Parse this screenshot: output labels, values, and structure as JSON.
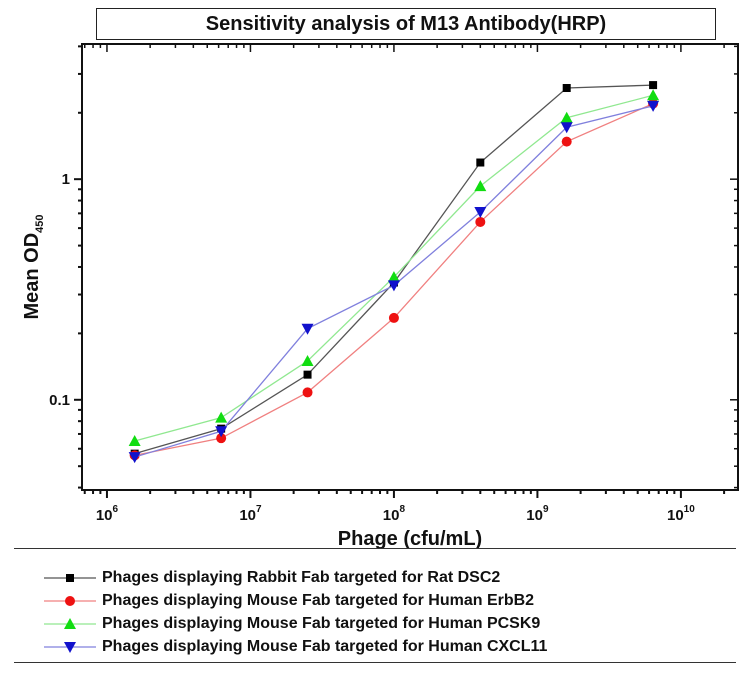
{
  "chart_data": {
    "type": "line",
    "title": "Sensitivity analysis of M13 Antibody(HRP)",
    "xlabel": "Phage (cfu/mL)",
    "ylabel": "Mean OD",
    "ylabel_sub": "450",
    "x_scale": "log",
    "y_scale": "log",
    "xlim": [
      670000,
      25000000000
    ],
    "ylim": [
      0.039,
      4.1
    ],
    "x_ticks": [
      {
        "value": 1000000.0,
        "base": "10",
        "exp": "6"
      },
      {
        "value": 10000000.0,
        "base": "10",
        "exp": "7"
      },
      {
        "value": 100000000.0,
        "base": "10",
        "exp": "8"
      },
      {
        "value": 1000000000.0,
        "base": "10",
        "exp": "9"
      },
      {
        "value": 10000000000.0,
        "base": "10",
        "exp": "10"
      }
    ],
    "y_ticks": [
      {
        "value": 0.1,
        "label": "0.1"
      },
      {
        "value": 1,
        "label": "1"
      }
    ],
    "grid": false,
    "legend_placement": "bottom",
    "x": [
      1560000,
      6250000,
      25000000,
      100000000,
      400000000,
      1600000000,
      6400000000
    ],
    "series": [
      {
        "name": "Phages displaying Rabbit Fab targeted for Rat DSC2",
        "color": "#000000",
        "line_color": "#555555",
        "marker": "square",
        "values": [
          0.057,
          0.074,
          0.13,
          0.34,
          1.19,
          2.59,
          2.67
        ]
      },
      {
        "name": "Phages displaying Mouse Fab targeted for Human ErbB2",
        "color": "#ee1111",
        "line_color": "#f08080",
        "marker": "circle",
        "values": [
          0.056,
          0.067,
          0.108,
          0.235,
          0.64,
          1.48,
          2.2
        ]
      },
      {
        "name": "Phages displaying Mouse Fab targeted for Human PCSK9",
        "color": "#11dd11",
        "line_color": "#90e890",
        "marker": "triangle-up",
        "values": [
          0.065,
          0.083,
          0.15,
          0.36,
          0.93,
          1.9,
          2.4
        ]
      },
      {
        "name": "Phages displaying Mouse Fab targeted for Human CXCL11",
        "color": "#1111cc",
        "line_color": "#8080dd",
        "marker": "triangle-down",
        "values": [
          0.055,
          0.072,
          0.21,
          0.33,
          0.71,
          1.72,
          2.15
        ]
      }
    ]
  }
}
